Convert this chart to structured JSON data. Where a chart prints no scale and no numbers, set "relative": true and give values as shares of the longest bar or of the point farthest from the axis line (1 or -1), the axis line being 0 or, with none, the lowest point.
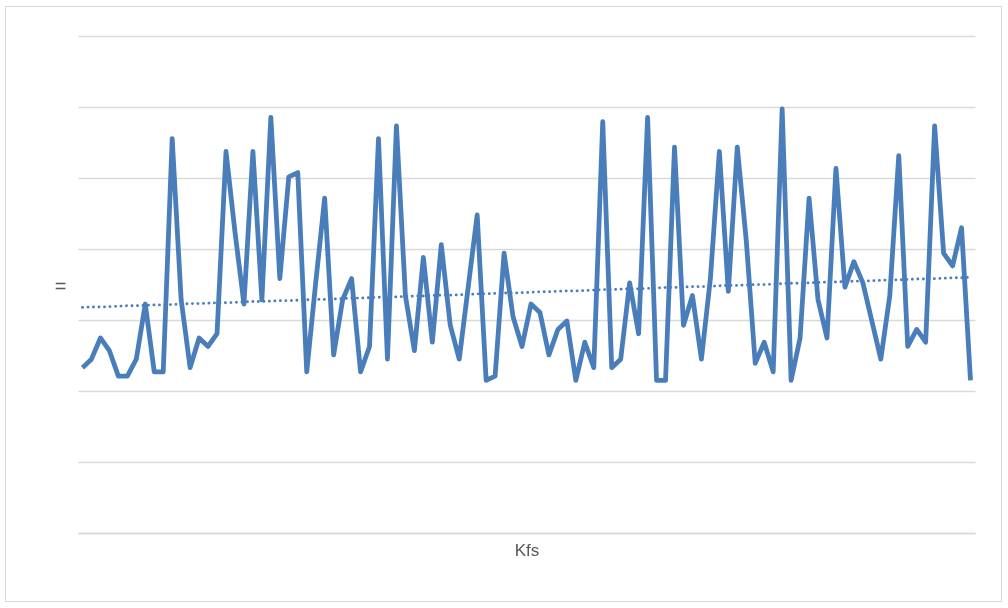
{
  "chart_data": {
    "type": "line",
    "relative": true,
    "grid": "y",
    "xlabel": "Kfs",
    "ylabel": "=",
    "categories": [
      null,
      null,
      null,
      null,
      null,
      null,
      null,
      null,
      null,
      null,
      null,
      null,
      null,
      null,
      null,
      null,
      null,
      null,
      null,
      null,
      null,
      null,
      null,
      null,
      null,
      null,
      null,
      null,
      null,
      null,
      null,
      null,
      null,
      null,
      null,
      null,
      null,
      null,
      null,
      null,
      null,
      null,
      null,
      null,
      null,
      null,
      null,
      null,
      null,
      null,
      null,
      null,
      null,
      null,
      null,
      null,
      null,
      null,
      null,
      null,
      null,
      null,
      null,
      null,
      null,
      null,
      null,
      null,
      null,
      null,
      null,
      null,
      null,
      null,
      null,
      null,
      null,
      null,
      null,
      null,
      null,
      null,
      null,
      null,
      null,
      null,
      null,
      null,
      null,
      null,
      null,
      null,
      null,
      null,
      null,
      null,
      null,
      null,
      null,
      null
    ],
    "series": [
      {
        "color": "#4a7ebb",
        "values": [
          0.39,
          0.41,
          0.46,
          0.43,
          0.37,
          0.37,
          0.41,
          0.54,
          0.38,
          0.38,
          0.93,
          0.55,
          0.39,
          0.46,
          0.44,
          0.47,
          0.9,
          0.71,
          0.54,
          0.9,
          0.55,
          0.98,
          0.6,
          0.84,
          0.85,
          0.38,
          0.59,
          0.79,
          0.42,
          0.55,
          0.6,
          0.38,
          0.44,
          0.93,
          0.41,
          0.96,
          0.56,
          0.43,
          0.65,
          0.45,
          0.68,
          0.49,
          0.41,
          0.58,
          0.75,
          0.36,
          0.37,
          0.66,
          0.51,
          0.44,
          0.54,
          0.52,
          0.42,
          0.48,
          0.5,
          0.36,
          0.45,
          0.39,
          0.97,
          0.39,
          0.41,
          0.59,
          0.47,
          0.98,
          0.36,
          0.36,
          0.91,
          0.49,
          0.56,
          0.41,
          0.6,
          0.9,
          0.57,
          0.91,
          0.69,
          0.4,
          0.45,
          0.38,
          1.0,
          0.36,
          0.46,
          0.79,
          0.55,
          0.46,
          0.86,
          0.58,
          0.64,
          0.59,
          0.5,
          0.41,
          0.56,
          0.89,
          0.44,
          0.48,
          0.45,
          0.96,
          0.66,
          0.63,
          0.72,
          0.36
        ]
      },
      {
        "type": "line",
        "line_style": "dotted",
        "color": "#4a7ebb",
        "values": [
          0.532,
          0.533,
          0.533,
          0.534,
          0.535,
          0.536,
          0.536,
          0.537,
          0.538,
          0.538,
          0.539,
          0.54,
          0.541,
          0.541,
          0.542,
          0.543,
          0.543,
          0.544,
          0.545,
          0.546,
          0.546,
          0.547,
          0.548,
          0.548,
          0.549,
          0.55,
          0.551,
          0.551,
          0.552,
          0.553,
          0.554,
          0.554,
          0.555,
          0.556,
          0.556,
          0.557,
          0.558,
          0.559,
          0.559,
          0.56,
          0.561,
          0.561,
          0.562,
          0.563,
          0.564,
          0.564,
          0.565,
          0.566,
          0.566,
          0.567,
          0.568,
          0.569,
          0.569,
          0.57,
          0.571,
          0.571,
          0.572,
          0.573,
          0.574,
          0.574,
          0.575,
          0.576,
          0.576,
          0.577,
          0.578,
          0.579,
          0.579,
          0.58,
          0.581,
          0.581,
          0.582,
          0.583,
          0.584,
          0.584,
          0.585,
          0.586,
          0.586,
          0.587,
          0.588,
          0.589,
          0.589,
          0.59,
          0.591,
          0.592,
          0.592,
          0.593,
          0.594,
          0.594,
          0.595,
          0.596,
          0.597,
          0.597,
          0.598,
          0.599,
          0.599,
          0.6,
          0.601,
          0.602,
          0.602,
          0.603
        ]
      }
    ]
  }
}
